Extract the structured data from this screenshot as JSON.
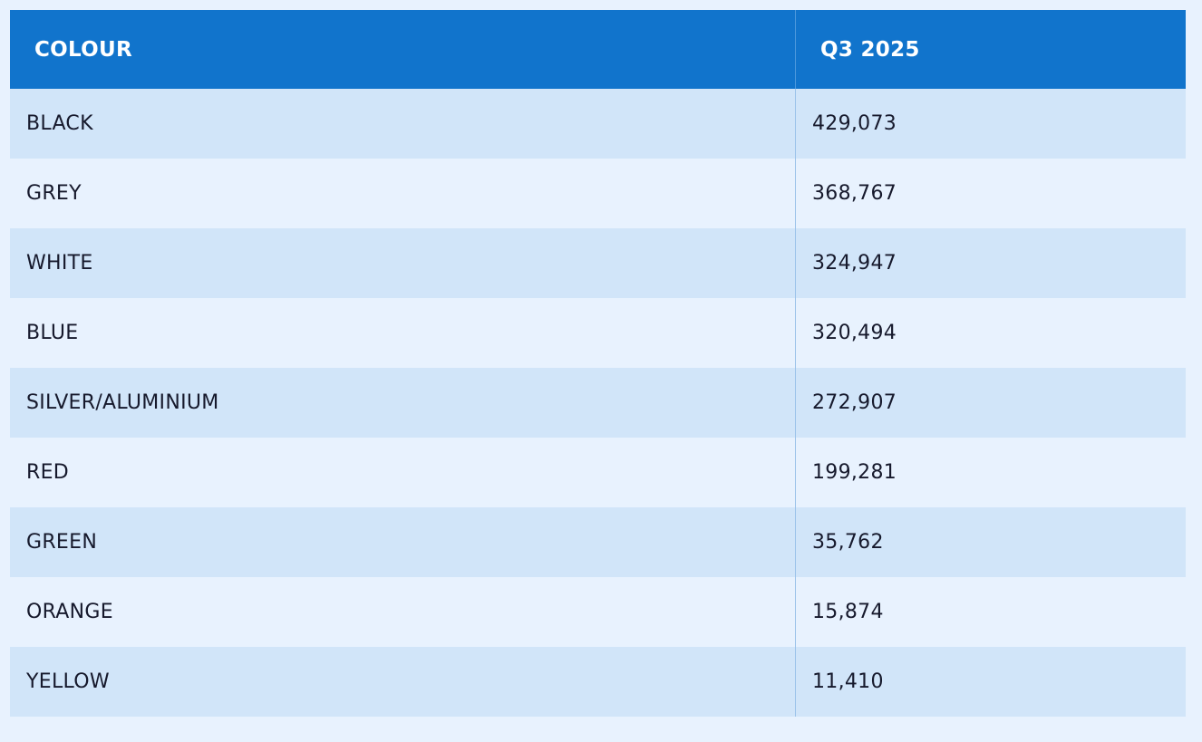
{
  "table": {
    "header": [
      "COLOUR",
      "Q3 2025"
    ],
    "rows": [
      [
        "BLACK",
        "429,073"
      ],
      [
        "GREY",
        "368,767"
      ],
      [
        "WHITE",
        "324,947"
      ],
      [
        "BLUE",
        "320,494"
      ],
      [
        "SILVER/ALUMINIUM",
        "272,907"
      ],
      [
        "RED",
        "199,281"
      ],
      [
        "GREEN",
        "35,762"
      ],
      [
        "ORANGE",
        "15,874"
      ],
      [
        "YELLOW",
        "11,410"
      ]
    ]
  }
}
